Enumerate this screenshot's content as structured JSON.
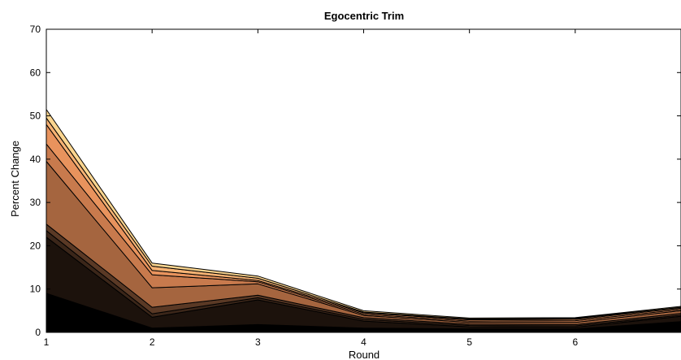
{
  "chart_data": {
    "type": "area",
    "stacked": true,
    "title": "Egocentric Trim",
    "xlabel": "Round",
    "ylabel": "Percent Change",
    "xlim": [
      1,
      7
    ],
    "ylim": [
      0,
      70
    ],
    "x": [
      1,
      2,
      3,
      4,
      5,
      6,
      7
    ],
    "xticks": [
      1,
      2,
      3,
      4,
      5,
      6
    ],
    "yticks": [
      0,
      10,
      20,
      30,
      40,
      50,
      60,
      70
    ],
    "grid": false,
    "legend": "none",
    "series": [
      {
        "color": "#000000",
        "values": [
          9.0,
          1.0,
          1.8,
          1.0,
          0.8,
          0.8,
          2.5
        ]
      },
      {
        "color": "#1c120c",
        "values": [
          13.0,
          2.5,
          5.7,
          1.6,
          0.5,
          0.4,
          1.2
        ]
      },
      {
        "color": "#3b2619",
        "values": [
          1.5,
          0.8,
          0.5,
          0.4,
          0.3,
          0.3,
          0.3
        ]
      },
      {
        "color": "#5a3925",
        "values": [
          1.5,
          1.5,
          0.6,
          0.4,
          0.3,
          0.3,
          0.4
        ]
      },
      {
        "color": "#a5653f",
        "values": [
          14.5,
          4.5,
          2.6,
          0.5,
          0.4,
          0.5,
          0.6
        ]
      },
      {
        "color": "#c87a4d",
        "values": [
          4.0,
          3.0,
          0.5,
          0.3,
          0.3,
          0.4,
          0.3
        ]
      },
      {
        "color": "#e8935d",
        "values": [
          4.5,
          1.0,
          0.3,
          0.3,
          0.3,
          0.3,
          0.3
        ]
      },
      {
        "color": "#f6b273",
        "values": [
          1.5,
          1.0,
          0.5,
          0.2,
          0.2,
          0.2,
          0.2
        ]
      },
      {
        "color": "#fbd58f",
        "values": [
          2.0,
          0.7,
          0.5,
          0.3,
          0.2,
          0.2,
          0.2
        ]
      }
    ]
  }
}
